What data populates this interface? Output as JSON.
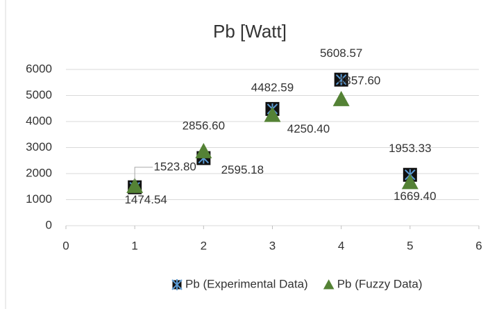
{
  "chart_data": {
    "type": "scatter",
    "title": "Pb [Watt]",
    "xlim": [
      0,
      6
    ],
    "xticks": [
      0,
      1,
      2,
      3,
      4,
      5,
      6
    ],
    "ylim": [
      0,
      6000
    ],
    "yticks": [
      0,
      1000,
      2000,
      3000,
      4000,
      5000,
      6000
    ],
    "grid": true,
    "legend": "bottom",
    "series": [
      {
        "name": "Pb (Experimental Data)",
        "color": "#5b9bd5",
        "marker": "square-star",
        "x": [
          1,
          2,
          3,
          4,
          5
        ],
        "values": [
          1474.54,
          2595.18,
          4482.59,
          5608.57,
          1953.33
        ],
        "value_labels": [
          "1474.54",
          "2595.18",
          "4482.59",
          "5608.57",
          "1953.33"
        ]
      },
      {
        "name": "Pb (Fuzzy Data)",
        "color": "#548235",
        "marker": "triangle",
        "x": [
          1,
          2,
          3,
          4,
          5
        ],
        "values": [
          1523.8,
          2856.6,
          4250.4,
          4857.6,
          1669.4
        ],
        "value_labels": [
          "1523.80",
          "2856.60",
          "4250.40",
          "4857.60",
          "1669.40"
        ]
      }
    ]
  }
}
